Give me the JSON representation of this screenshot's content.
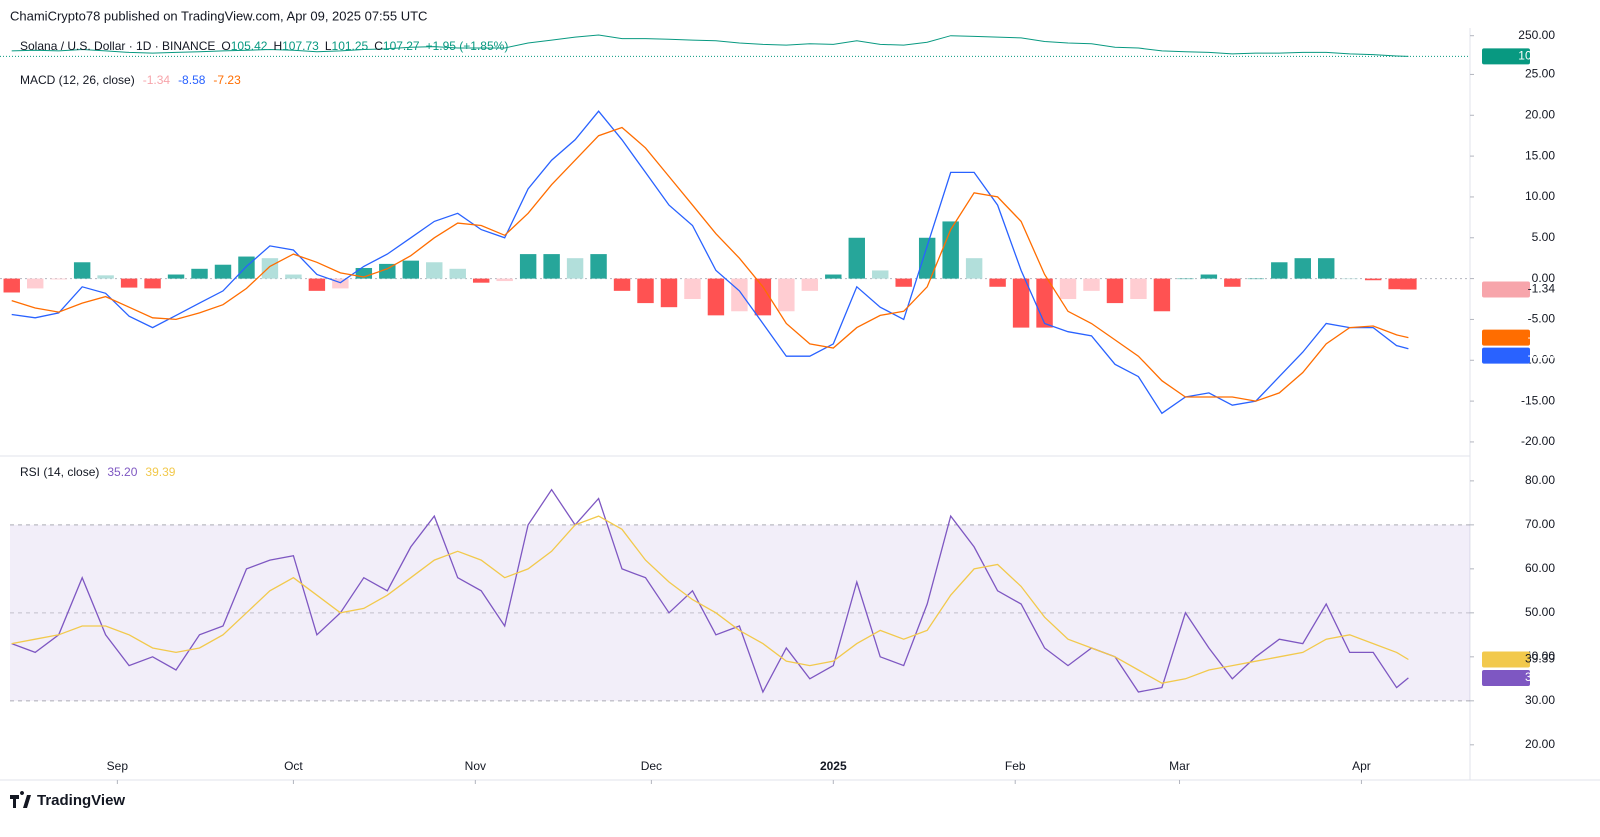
{
  "header": {
    "text": "ChamiCrypto78 published on TradingView.com, Apr 09, 2025 07:55 UTC"
  },
  "footer": {
    "brand": "TradingView"
  },
  "chart_data": [
    {
      "type": "line",
      "title": "Solana / U.S. Dollar · 1D · BINANCE",
      "ohlc": [
        {
          "label": "O",
          "value": 105.42
        },
        {
          "label": "H",
          "value": 107.73
        },
        {
          "label": "L",
          "value": 101.25
        },
        {
          "label": "C",
          "value": 107.27
        }
      ],
      "change": "+1.95 (+1.85%)",
      "x": [
        0,
        4,
        8,
        12,
        16,
        20,
        24,
        28,
        32,
        36,
        40,
        44,
        48,
        52,
        56,
        60,
        64,
        68,
        72,
        76,
        80,
        84,
        88,
        92,
        96,
        100,
        104,
        108,
        112,
        116,
        120,
        124,
        128,
        132,
        136,
        140,
        144,
        148,
        152,
        156,
        160,
        164,
        168,
        172,
        176,
        180,
        184,
        188,
        192,
        196,
        200,
        204,
        208,
        212,
        216,
        220,
        224,
        228,
        232,
        236,
        238
      ],
      "xlim": [
        -2,
        248.5
      ],
      "series": [
        {
          "color": "#089981",
          "values": [
            145,
            150,
            145,
            155,
            145,
            135,
            130,
            135,
            140,
            145,
            150,
            155,
            150,
            140,
            145,
            155,
            160,
            170,
            175,
            165,
            165,
            165,
            200,
            220,
            240,
            255,
            230,
            230,
            225,
            220,
            215,
            200,
            190,
            185,
            195,
            190,
            215,
            190,
            185,
            205,
            250,
            245,
            240,
            235,
            210,
            200,
            195,
            170,
            165,
            145,
            140,
            135,
            125,
            130,
            130,
            135,
            135,
            125,
            120,
            110,
            107.27
          ]
        }
      ],
      "ylim": [
        62,
        303
      ],
      "yticks": [
        {
          "value": 250,
          "label": "250.00"
        }
      ]
    },
    {
      "type": "macd",
      "title": "MACD (12, 26, close)",
      "x": [
        0,
        4,
        8,
        12,
        16,
        20,
        24,
        28,
        32,
        36,
        40,
        44,
        48,
        52,
        56,
        60,
        64,
        68,
        72,
        76,
        80,
        84,
        88,
        92,
        96,
        100,
        104,
        108,
        112,
        116,
        120,
        124,
        128,
        132,
        136,
        140,
        144,
        148,
        152,
        156,
        160,
        164,
        168,
        172,
        176,
        180,
        184,
        188,
        192,
        196,
        200,
        204,
        208,
        212,
        216,
        220,
        224,
        228,
        232,
        236,
        238
      ],
      "xlim": [
        -2,
        248.5
      ],
      "series": [
        {
          "colors": [
            "#26a69a",
            "#b2dfdb",
            "#ff5252",
            "#ffcdd2"
          ],
          "color": "#f7a5ab",
          "values": [
            -1.7,
            -1.2,
            -0.1,
            2.0,
            0.4,
            -1.1,
            -1.2,
            0.5,
            1.2,
            1.7,
            2.7,
            2.5,
            0.5,
            -1.5,
            -1.2,
            1.3,
            1.8,
            2.2,
            2.0,
            1.2,
            -0.5,
            -0.3,
            3.0,
            3.0,
            2.5,
            3.0,
            -1.5,
            -3.0,
            -3.5,
            -2.5,
            -4.5,
            -4.0,
            -4.5,
            -4.0,
            -1.5,
            0.5,
            5.0,
            1.0,
            -1.0,
            5.0,
            7.0,
            2.5,
            -1.0,
            -6.0,
            -6.0,
            -2.5,
            -1.5,
            -3.0,
            -2.5,
            -4.0,
            0.0,
            0.5,
            -1.0,
            0.0,
            2.0,
            2.5,
            2.5,
            0.0,
            -0.2,
            -1.3,
            -1.34
          ]
        },
        {
          "color": "#2962ff",
          "values": [
            -4.4,
            -4.8,
            -4.2,
            -1.0,
            -1.8,
            -4.6,
            -6.0,
            -4.5,
            -3.0,
            -1.5,
            1.5,
            4.0,
            3.5,
            0.5,
            -0.5,
            1.5,
            3.0,
            5.0,
            7.0,
            8.0,
            6.0,
            5.0,
            11.0,
            14.5,
            17.0,
            20.5,
            17.0,
            13.0,
            9.0,
            6.5,
            1.0,
            -1.5,
            -5.5,
            -9.5,
            -9.5,
            -8.0,
            -1.0,
            -3.5,
            -5.0,
            4.0,
            13.0,
            13.0,
            9.0,
            1.0,
            -5.5,
            -6.5,
            -7.0,
            -10.5,
            -12.0,
            -16.5,
            -14.5,
            -14.0,
            -15.5,
            -15.0,
            -12.0,
            -9.0,
            -5.5,
            -6.0,
            -6.0,
            -8.2,
            -8.58
          ]
        },
        {
          "color": "#ff6d00",
          "values": [
            -2.7,
            -3.6,
            -4.1,
            -3.0,
            -2.2,
            -3.5,
            -4.8,
            -5.0,
            -4.2,
            -3.2,
            -1.2,
            1.5,
            3.0,
            2.0,
            0.7,
            0.2,
            1.2,
            2.8,
            5.0,
            6.8,
            6.5,
            5.3,
            8.0,
            11.5,
            14.5,
            17.5,
            18.5,
            16.0,
            12.5,
            9.0,
            5.5,
            2.5,
            -1.0,
            -5.5,
            -8.0,
            -8.5,
            -6.0,
            -4.5,
            -4.0,
            -1.0,
            6.0,
            10.5,
            10.0,
            7.0,
            0.5,
            -4.0,
            -5.5,
            -7.5,
            -9.5,
            -12.5,
            -14.5,
            -14.5,
            -14.5,
            -15.0,
            -14.0,
            -11.5,
            -8.0,
            -6.0,
            -5.8,
            -6.9,
            -7.23
          ]
        }
      ],
      "ylim": [
        -21.6,
        26.4
      ],
      "yticks": [
        {
          "value": 25,
          "label": "25.00"
        },
        {
          "value": 20,
          "label": "20.00"
        },
        {
          "value": 15,
          "label": "15.00"
        },
        {
          "value": 10,
          "label": "10.00"
        },
        {
          "value": 5,
          "label": "5.00"
        },
        {
          "value": 0,
          "label": "0.00"
        },
        {
          "value": -5,
          "label": "-5.00"
        },
        {
          "value": -10,
          "label": "-10.00"
        },
        {
          "value": -15,
          "label": "-15.00"
        },
        {
          "value": -20,
          "label": "-20.00"
        }
      ]
    },
    {
      "type": "line",
      "title": "RSI (14, close)",
      "x": [
        0,
        4,
        8,
        12,
        16,
        20,
        24,
        28,
        32,
        36,
        40,
        44,
        48,
        52,
        56,
        60,
        64,
        68,
        72,
        76,
        80,
        84,
        88,
        92,
        96,
        100,
        104,
        108,
        112,
        116,
        120,
        124,
        128,
        132,
        136,
        140,
        144,
        148,
        152,
        156,
        160,
        164,
        168,
        172,
        176,
        180,
        184,
        188,
        192,
        196,
        200,
        204,
        208,
        212,
        216,
        220,
        224,
        228,
        232,
        236,
        238
      ],
      "xlim": [
        -2,
        248.5
      ],
      "xticks": [
        {
          "value": 18,
          "label": "Sep"
        },
        {
          "value": 48,
          "label": "Oct"
        },
        {
          "value": 79,
          "label": "Nov"
        },
        {
          "value": 109,
          "label": "Dec"
        },
        {
          "value": 140,
          "label": "2025"
        },
        {
          "value": 171,
          "label": "Feb"
        },
        {
          "value": 199,
          "label": "Mar"
        },
        {
          "value": 230,
          "label": "Apr"
        }
      ],
      "series": [
        {
          "color": "#7e57c2",
          "values": [
            43,
            41,
            45,
            58,
            45,
            38,
            40,
            37,
            45,
            47,
            60,
            62,
            63,
            45,
            50,
            58,
            55,
            65,
            72,
            58,
            55,
            47,
            70,
            78,
            70,
            76,
            60,
            58,
            50,
            55,
            45,
            47,
            32,
            42,
            35,
            38,
            57,
            40,
            38,
            52,
            72,
            65,
            55,
            52,
            42,
            38,
            42,
            40,
            32,
            33,
            50,
            42,
            35,
            40,
            44,
            43,
            52,
            41,
            41,
            33,
            35.2
          ],
          "value_labels": [
            null,
            null,
            null,
            null,
            null,
            null,
            null,
            null,
            null,
            null,
            null,
            null,
            null,
            null,
            null,
            null,
            null,
            null,
            null,
            null,
            null,
            null,
            null,
            null,
            null,
            null,
            null,
            null,
            null,
            null,
            null,
            null,
            null,
            null,
            null,
            null,
            null,
            null,
            null,
            null,
            null,
            null,
            null,
            null,
            null,
            null,
            null,
            null,
            null,
            null,
            null,
            null,
            null,
            null,
            null,
            null,
            null,
            null,
            null,
            null,
            "35.20"
          ]
        },
        {
          "color": "#f2c94c",
          "values": [
            43,
            44,
            45,
            47,
            47,
            45,
            42,
            41,
            42,
            45,
            50,
            55,
            58,
            54,
            50,
            51,
            54,
            58,
            62,
            64,
            62,
            58,
            60,
            64,
            70,
            72,
            69,
            62,
            57,
            53,
            50,
            46,
            43,
            39,
            38,
            39,
            43,
            46,
            44,
            46,
            54,
            60,
            61,
            56,
            49,
            44,
            42,
            40,
            37,
            34,
            35,
            37,
            38,
            39,
            40,
            41,
            44,
            45,
            43,
            41,
            39.39
          ]
        }
      ],
      "bands": [
        30,
        70
      ],
      "midline": 50,
      "band_color": "#7e57c2",
      "ylim": [
        12,
        85.2
      ],
      "yticks": [
        {
          "value": 20,
          "label": "20.00"
        },
        {
          "value": 30,
          "label": "30.00"
        },
        {
          "value": 40,
          "label": "40.00"
        },
        {
          "value": 50,
          "label": "50.00"
        },
        {
          "value": 60,
          "label": "60.00"
        },
        {
          "value": 70,
          "label": "70.00"
        },
        {
          "value": 80,
          "label": "80.00"
        }
      ]
    }
  ]
}
